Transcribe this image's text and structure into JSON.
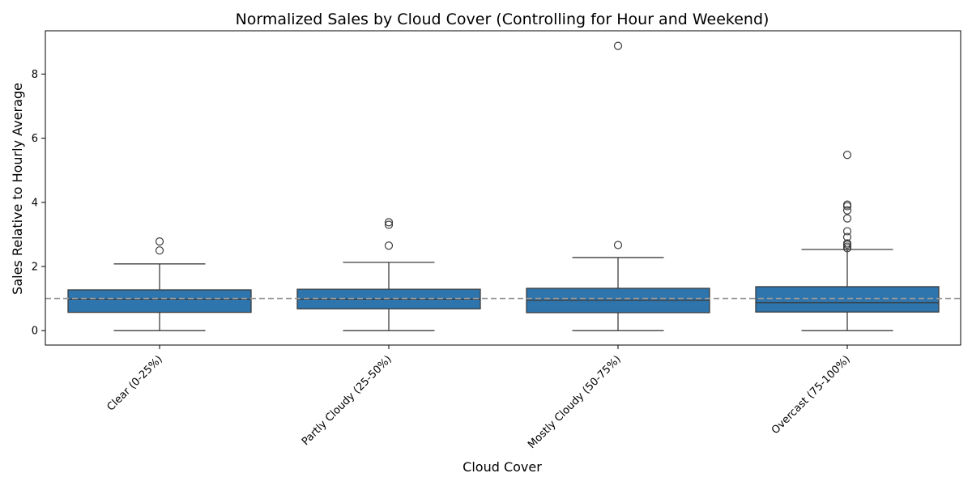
{
  "chart_data": {
    "type": "box",
    "title": "Normalized Sales by Cloud Cover (Controlling for Hour and Weekend)",
    "xlabel": "Cloud Cover",
    "ylabel": "Sales Relative to Hourly Average",
    "ylim": [
      -0.45,
      9.35
    ],
    "yticks": [
      0,
      2,
      4,
      6,
      8
    ],
    "reference_line": {
      "y": 1.0,
      "style": "dashed",
      "color": "#999999"
    },
    "box_color": "#2e74ad",
    "categories": [
      "Clear (0-25%)",
      "Partly Cloudy (25-50%)",
      "Mostly Cloudy (50-75%)",
      "Overcast (75-100%)"
    ],
    "boxes": [
      {
        "whisker_low": 0.0,
        "q1": 0.57,
        "median": 0.98,
        "q3": 1.27,
        "whisker_high": 2.08,
        "outliers": [
          2.5,
          2.78
        ]
      },
      {
        "whisker_low": 0.0,
        "q1": 0.68,
        "median": 0.98,
        "q3": 1.29,
        "whisker_high": 2.13,
        "outliers": [
          2.65,
          3.3,
          3.38
        ]
      },
      {
        "whisker_low": 0.0,
        "q1": 0.56,
        "median": 0.95,
        "q3": 1.32,
        "whisker_high": 2.28,
        "outliers": [
          2.67,
          8.88
        ]
      },
      {
        "whisker_low": 0.0,
        "q1": 0.58,
        "median": 0.87,
        "q3": 1.37,
        "whisker_high": 2.53,
        "outliers": [
          2.57,
          2.62,
          2.68,
          2.72,
          2.92,
          3.1,
          3.5,
          3.75,
          3.88,
          3.93,
          5.48
        ]
      }
    ]
  }
}
